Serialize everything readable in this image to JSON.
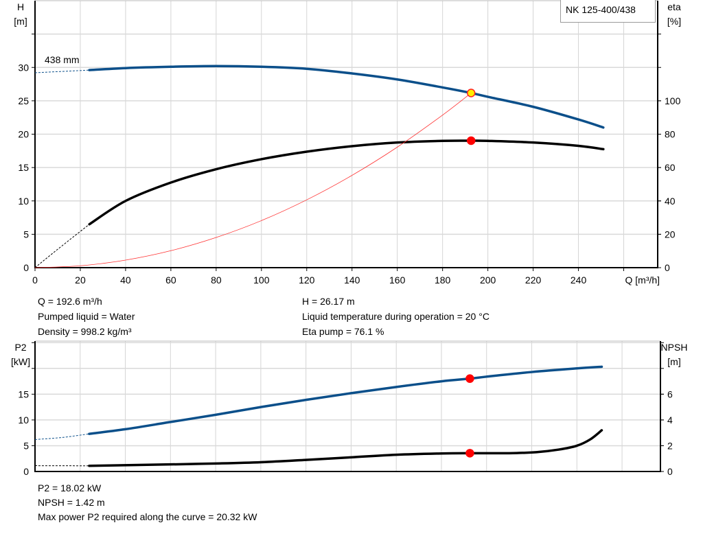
{
  "legend": "NK 125-400/438",
  "chart_data": [
    {
      "type": "line",
      "title": "",
      "xlabel": "Q [m³/h]",
      "xlim": [
        0,
        275
      ],
      "xticks": [
        0,
        20,
        40,
        60,
        80,
        100,
        120,
        140,
        160,
        180,
        200,
        220,
        240
      ],
      "ylabel_left": "H",
      "ylabel_left_unit": "[m]",
      "ylim_left": [
        0,
        40
      ],
      "yticks_left": [
        0,
        5,
        10,
        15,
        20,
        25,
        30
      ],
      "ylabel_right": "eta",
      "ylabel_right_unit": "[%]",
      "ylim_right": [
        0,
        160
      ],
      "yticks_right": [
        0,
        20,
        40,
        60,
        80,
        100
      ],
      "grid": true,
      "curve_label": "438 mm",
      "series": [
        {
          "key": "H",
          "axis": "left",
          "color": "#0b4f8a",
          "dashed": [
            [
              0,
              29.2
            ],
            [
              24,
              29.6
            ]
          ],
          "points": [
            [
              24,
              29.6
            ],
            [
              40,
              29.9
            ],
            [
              60,
              30.1
            ],
            [
              80,
              30.2
            ],
            [
              100,
              30.1
            ],
            [
              120,
              29.8
            ],
            [
              140,
              29.1
            ],
            [
              160,
              28.2
            ],
            [
              180,
              27.0
            ],
            [
              192.6,
              26.17
            ],
            [
              200,
              25.6
            ],
            [
              220,
              24.1
            ],
            [
              240,
              22.2
            ],
            [
              251,
              21.0
            ]
          ]
        },
        {
          "key": "eta",
          "axis": "right",
          "color": "#000000",
          "dashed": [
            [
              0,
              0
            ],
            [
              10,
              11
            ],
            [
              24,
              26
            ]
          ],
          "points": [
            [
              24,
              26
            ],
            [
              40,
              40
            ],
            [
              60,
              51
            ],
            [
              80,
              59
            ],
            [
              100,
              65
            ],
            [
              120,
              69.5
            ],
            [
              140,
              72.8
            ],
            [
              160,
              75
            ],
            [
              180,
              76
            ],
            [
              192.6,
              76.1
            ],
            [
              200,
              76
            ],
            [
              220,
              75
            ],
            [
              240,
              73
            ],
            [
              251,
              71
            ]
          ]
        },
        {
          "key": "system",
          "axis": "left",
          "color": "#ff3030",
          "thin": true,
          "points": [
            [
              0,
              0
            ],
            [
              20,
              0.28
            ],
            [
              40,
              1.13
            ],
            [
              60,
              2.54
            ],
            [
              80,
              4.52
            ],
            [
              100,
              7.05
            ],
            [
              120,
              10.16
            ],
            [
              140,
              13.83
            ],
            [
              160,
              18.06
            ],
            [
              180,
              22.86
            ],
            [
              192.6,
              26.17
            ]
          ]
        }
      ],
      "operating_points": [
        {
          "axis": "left",
          "x": 192.6,
          "y": 26.17,
          "fill": "#ffee00",
          "stroke": "#ff2020"
        },
        {
          "axis": "right",
          "x": 192.6,
          "y": 76.1,
          "fill": "#ff0000",
          "stroke": "#ff0000"
        }
      ]
    },
    {
      "type": "line",
      "title": "",
      "xlim": [
        0,
        277
      ],
      "xticks": [
        0,
        20,
        40,
        60,
        80,
        100,
        120,
        140,
        160,
        180,
        200,
        220,
        240,
        260
      ],
      "ylabel_left": "P2",
      "ylabel_left_unit": "[kW]",
      "ylim_left": [
        0,
        25.3
      ],
      "yticks_left": [
        0,
        5,
        10,
        15
      ],
      "ylabel_right": "NPSH",
      "ylabel_right_unit": "[m]",
      "ylim_right": [
        0,
        10.12
      ],
      "yticks_right": [
        0,
        2,
        4,
        6
      ],
      "grid": true,
      "series": [
        {
          "key": "P2",
          "axis": "left",
          "color": "#0b4f8a",
          "dashed": [
            [
              0,
              6.2
            ],
            [
              12,
              6.6
            ],
            [
              24,
              7.3
            ]
          ],
          "points": [
            [
              24,
              7.3
            ],
            [
              40,
              8.2
            ],
            [
              60,
              9.6
            ],
            [
              80,
              11.0
            ],
            [
              100,
              12.5
            ],
            [
              120,
              13.9
            ],
            [
              140,
              15.2
            ],
            [
              160,
              16.4
            ],
            [
              180,
              17.5
            ],
            [
              192.6,
              18.02
            ],
            [
              200,
              18.4
            ],
            [
              220,
              19.3
            ],
            [
              240,
              20.0
            ],
            [
              251,
              20.32
            ]
          ]
        },
        {
          "key": "NPSH",
          "axis": "right",
          "color": "#000000",
          "dashed": [
            [
              0,
              0.45
            ],
            [
              24,
              0.44
            ]
          ],
          "points": [
            [
              24,
              0.44
            ],
            [
              60,
              0.55
            ],
            [
              80,
              0.62
            ],
            [
              100,
              0.72
            ],
            [
              120,
              0.9
            ],
            [
              140,
              1.1
            ],
            [
              160,
              1.3
            ],
            [
              180,
              1.4
            ],
            [
              192.6,
              1.42
            ],
            [
              210,
              1.42
            ],
            [
              222,
              1.5
            ],
            [
              232,
              1.7
            ],
            [
              240,
              2.0
            ],
            [
              246,
              2.5
            ],
            [
              251,
              3.2
            ]
          ]
        }
      ],
      "operating_points": [
        {
          "axis": "left",
          "x": 192.6,
          "y": 18.02,
          "fill": "#ff0000",
          "stroke": "#ff0000"
        },
        {
          "axis": "right",
          "x": 192.6,
          "y": 1.42,
          "fill": "#ff0000",
          "stroke": "#ff0000"
        }
      ]
    }
  ],
  "info_top": {
    "q": "Q = 192.6 m³/h",
    "liquid": "Pumped liquid = Water",
    "density": "Density = 998.2 kg/m³",
    "h": "H = 26.17 m",
    "temp": "Liquid temperature during operation = 20 °C",
    "eta": "Eta pump = 76.1 %"
  },
  "info_bottom": {
    "p2": "P2 = 18.02 kW",
    "npsh": "NPSH = 1.42 m",
    "maxp2": "Max power P2 required along the curve = 20.32 kW"
  }
}
